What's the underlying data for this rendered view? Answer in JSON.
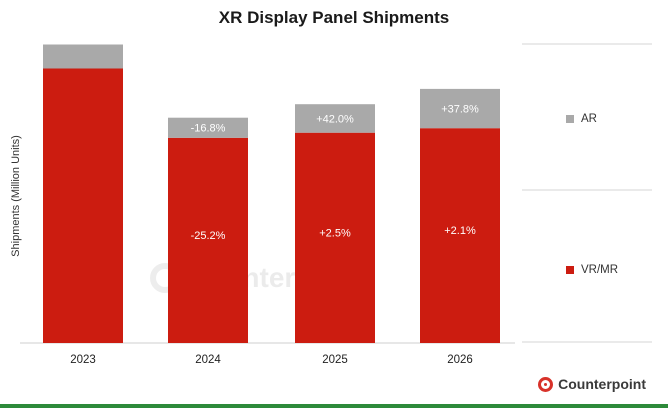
{
  "chart_data": {
    "type": "bar",
    "stacked": true,
    "title": "XR Display Panel Shipments",
    "ylabel": "Shipments (Million Units)",
    "xlabel": "",
    "categories": [
      "2023",
      "2024",
      "2025",
      "2026"
    ],
    "ylim": [
      0,
      100
    ],
    "grid": false,
    "legend_position": "right",
    "series": [
      {
        "name": "VR/MR",
        "color": "#cc1c10",
        "values": [
          91.5,
          68.4,
          70.1,
          71.6
        ],
        "labels": [
          "",
          "-25.2%",
          "+2.5%",
          "+2.1%"
        ]
      },
      {
        "name": "AR",
        "color": "#a9a9a9",
        "values": [
          8.0,
          6.7,
          9.5,
          13.1
        ],
        "labels": [
          "",
          "-16.8%",
          "+42.0%",
          "+37.8%"
        ]
      }
    ],
    "legend_order": [
      "AR",
      "VR/MR"
    ]
  },
  "watermark": "Counterpoint",
  "brand": "Counterpoint"
}
